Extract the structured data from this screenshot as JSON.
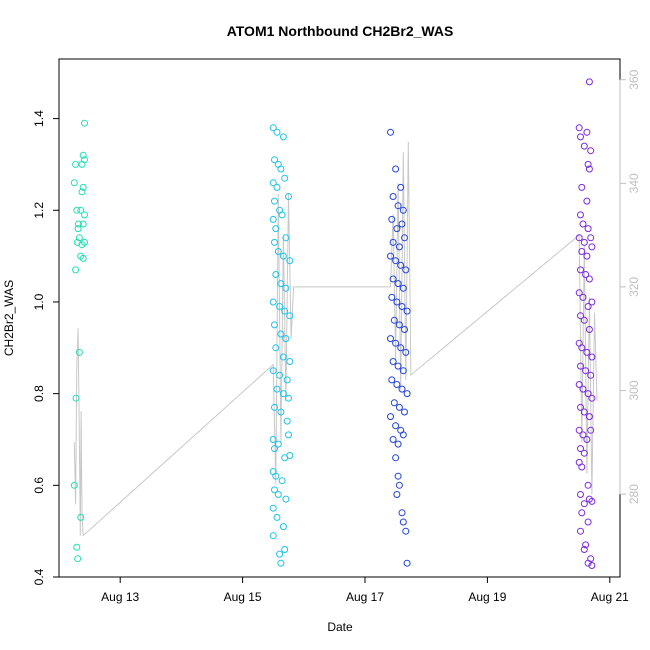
{
  "chart_data": {
    "type": "scatter",
    "title": "ATOM1 Northbound CH2Br2_WAS",
    "xlabel": "Date",
    "ylabel": "CH2Br2_WAS",
    "x_range": [
      "2016-08-12T00:00",
      "2016-08-21T04:00"
    ],
    "ylim": [
      0.4,
      1.53
    ],
    "y2lim": [
      264,
      364
    ],
    "x_ticks": [
      {
        "date": "2016-08-13",
        "label": "Aug 13"
      },
      {
        "date": "2016-08-15",
        "label": "Aug 15"
      },
      {
        "date": "2016-08-17",
        "label": "Aug 17"
      },
      {
        "date": "2016-08-19",
        "label": "Aug 19"
      },
      {
        "date": "2016-08-21",
        "label": "Aug 21"
      }
    ],
    "y_ticks": [
      {
        "value": 0.4,
        "label": "0.4"
      },
      {
        "value": 0.6,
        "label": "0.6"
      },
      {
        "value": 0.8,
        "label": "0.8"
      },
      {
        "value": 1.0,
        "label": "1.0"
      },
      {
        "value": 1.2,
        "label": "1.2"
      },
      {
        "value": 1.4,
        "label": "1.4"
      }
    ],
    "y2_ticks": [
      {
        "value": 280,
        "label": "280"
      },
      {
        "value": 300,
        "label": "300"
      },
      {
        "value": 320,
        "label": "320"
      },
      {
        "value": 340,
        "label": "340"
      },
      {
        "value": 360,
        "label": "360"
      }
    ],
    "colors": {
      "c1": "#1fe0b8",
      "c2": "#1ec3e6",
      "c3": "#2244dd",
      "c4": "#7a2ae0",
      "secondary_line": "#c8c8c8",
      "secondary_axis": "#bfbfbf"
    },
    "grid": false,
    "legend": "none",
    "series": [
      {
        "color": "c1",
        "points": [
          [
            "2016-08-12T06:00",
            1.26
          ],
          [
            "2016-08-12T06:30",
            1.3
          ],
          [
            "2016-08-12T07:00",
            1.2
          ],
          [
            "2016-08-12T07:30",
            1.16
          ],
          [
            "2016-08-12T08:00",
            1.14
          ],
          [
            "2016-08-12T08:30",
            1.1
          ],
          [
            "2016-08-12T06:30",
            1.07
          ],
          [
            "2016-08-12T07:10",
            1.13
          ],
          [
            "2016-08-12T07:40",
            1.17
          ],
          [
            "2016-08-12T06:00",
            0.6
          ],
          [
            "2016-08-12T06:40",
            0.79
          ],
          [
            "2016-08-12T07:00",
            0.465
          ],
          [
            "2016-08-12T07:20",
            0.44
          ],
          [
            "2016-08-12T08:00",
            0.89
          ],
          [
            "2016-08-12T08:30",
            0.53
          ],
          [
            "2016-08-12T09:00",
            1.3
          ],
          [
            "2016-08-12T09:30",
            1.32
          ],
          [
            "2016-08-12T10:00",
            1.39
          ],
          [
            "2016-08-12T10:00",
            1.31
          ],
          [
            "2016-08-12T09:00",
            1.24
          ],
          [
            "2016-08-12T09:30",
            1.25
          ],
          [
            "2016-08-12T10:00",
            1.19
          ],
          [
            "2016-08-12T09:30",
            1.17
          ],
          [
            "2016-08-12T10:00",
            1.13
          ],
          [
            "2016-08-12T09:00",
            1.125
          ],
          [
            "2016-08-12T09:30",
            1.095
          ],
          [
            "2016-08-12T08:30",
            1.2
          ]
        ]
      },
      {
        "color": "c2",
        "points": [
          [
            "2016-08-15T12:00",
            1.38
          ],
          [
            "2016-08-15T13:30",
            1.37
          ],
          [
            "2016-08-15T16:00",
            1.36
          ],
          [
            "2016-08-15T12:30",
            1.31
          ],
          [
            "2016-08-15T14:00",
            1.3
          ],
          [
            "2016-08-15T15:00",
            1.29
          ],
          [
            "2016-08-15T12:00",
            1.26
          ],
          [
            "2016-08-15T13:30",
            1.25
          ],
          [
            "2016-08-15T16:30",
            1.27
          ],
          [
            "2016-08-15T12:30",
            1.22
          ],
          [
            "2016-08-15T14:30",
            1.2
          ],
          [
            "2016-08-15T18:00",
            1.23
          ],
          [
            "2016-08-15T12:00",
            1.18
          ],
          [
            "2016-08-15T13:00",
            1.16
          ],
          [
            "2016-08-15T15:30",
            1.19
          ],
          [
            "2016-08-15T17:00",
            1.14
          ],
          [
            "2016-08-15T12:30",
            1.13
          ],
          [
            "2016-08-15T14:00",
            1.11
          ],
          [
            "2016-08-15T16:00",
            1.1
          ],
          [
            "2016-08-15T18:30",
            1.09
          ],
          [
            "2016-08-15T13:00",
            1.06
          ],
          [
            "2016-08-15T15:00",
            1.04
          ],
          [
            "2016-08-15T17:00",
            1.03
          ],
          [
            "2016-08-15T12:00",
            1.0
          ],
          [
            "2016-08-15T14:30",
            0.99
          ],
          [
            "2016-08-15T16:30",
            0.98
          ],
          [
            "2016-08-15T18:30",
            0.97
          ],
          [
            "2016-08-15T12:30",
            0.95
          ],
          [
            "2016-08-15T15:00",
            0.93
          ],
          [
            "2016-08-15T17:00",
            0.92
          ],
          [
            "2016-08-15T13:00",
            0.9
          ],
          [
            "2016-08-15T16:00",
            0.88
          ],
          [
            "2016-08-15T18:30",
            0.87
          ],
          [
            "2016-08-15T12:00",
            0.85
          ],
          [
            "2016-08-15T14:30",
            0.84
          ],
          [
            "2016-08-15T17:30",
            0.83
          ],
          [
            "2016-08-15T13:30",
            0.81
          ],
          [
            "2016-08-15T16:00",
            0.8
          ],
          [
            "2016-08-15T18:00",
            0.79
          ],
          [
            "2016-08-15T12:30",
            0.77
          ],
          [
            "2016-08-15T15:00",
            0.76
          ],
          [
            "2016-08-15T17:30",
            0.74
          ],
          [
            "2016-08-15T12:00",
            0.7
          ],
          [
            "2016-08-15T14:00",
            0.69
          ],
          [
            "2016-08-15T18:00",
            0.71
          ],
          [
            "2016-08-15T12:30",
            0.68
          ],
          [
            "2016-08-15T16:30",
            0.66
          ],
          [
            "2016-08-15T18:30",
            0.665
          ],
          [
            "2016-08-15T12:00",
            0.63
          ],
          [
            "2016-08-15T13:00",
            0.62
          ],
          [
            "2016-08-15T15:30",
            0.61
          ],
          [
            "2016-08-15T12:30",
            0.59
          ],
          [
            "2016-08-15T14:00",
            0.58
          ],
          [
            "2016-08-15T17:00",
            0.57
          ],
          [
            "2016-08-15T12:00",
            0.55
          ],
          [
            "2016-08-15T13:30",
            0.53
          ],
          [
            "2016-08-15T16:00",
            0.51
          ],
          [
            "2016-08-15T12:00",
            0.49
          ],
          [
            "2016-08-15T14:30",
            0.45
          ],
          [
            "2016-08-15T16:30",
            0.46
          ],
          [
            "2016-08-15T15:00",
            0.43
          ]
        ]
      },
      {
        "color": "c3",
        "points": [
          [
            "2016-08-17T10:00",
            1.37
          ],
          [
            "2016-08-17T12:00",
            1.29
          ],
          [
            "2016-08-17T14:00",
            1.25
          ],
          [
            "2016-08-17T11:00",
            1.23
          ],
          [
            "2016-08-17T13:00",
            1.21
          ],
          [
            "2016-08-17T15:00",
            1.2
          ],
          [
            "2016-08-17T10:30",
            1.18
          ],
          [
            "2016-08-17T12:30",
            1.16
          ],
          [
            "2016-08-17T14:30",
            1.17
          ],
          [
            "2016-08-17T11:00",
            1.13
          ],
          [
            "2016-08-17T13:30",
            1.12
          ],
          [
            "2016-08-17T15:30",
            1.14
          ],
          [
            "2016-08-17T10:00",
            1.1
          ],
          [
            "2016-08-17T12:00",
            1.09
          ],
          [
            "2016-08-17T14:00",
            1.08
          ],
          [
            "2016-08-17T16:00",
            1.07
          ],
          [
            "2016-08-17T11:00",
            1.05
          ],
          [
            "2016-08-17T13:00",
            1.04
          ],
          [
            "2016-08-17T15:00",
            1.03
          ],
          [
            "2016-08-17T10:30",
            1.01
          ],
          [
            "2016-08-17T12:30",
            1.0
          ],
          [
            "2016-08-17T14:30",
            0.99
          ],
          [
            "2016-08-17T16:30",
            0.98
          ],
          [
            "2016-08-17T11:30",
            0.96
          ],
          [
            "2016-08-17T13:30",
            0.95
          ],
          [
            "2016-08-17T15:30",
            0.94
          ],
          [
            "2016-08-17T10:00",
            0.92
          ],
          [
            "2016-08-17T12:00",
            0.91
          ],
          [
            "2016-08-17T14:00",
            0.9
          ],
          [
            "2016-08-17T16:00",
            0.89
          ],
          [
            "2016-08-17T11:00",
            0.87
          ],
          [
            "2016-08-17T13:00",
            0.86
          ],
          [
            "2016-08-17T15:00",
            0.85
          ],
          [
            "2016-08-17T10:30",
            0.83
          ],
          [
            "2016-08-17T12:30",
            0.82
          ],
          [
            "2016-08-17T14:30",
            0.81
          ],
          [
            "2016-08-17T16:30",
            0.8
          ],
          [
            "2016-08-17T11:30",
            0.78
          ],
          [
            "2016-08-17T13:30",
            0.77
          ],
          [
            "2016-08-17T15:30",
            0.76
          ],
          [
            "2016-08-17T10:00",
            0.75
          ],
          [
            "2016-08-17T12:00",
            0.73
          ],
          [
            "2016-08-17T14:00",
            0.72
          ],
          [
            "2016-08-17T11:00",
            0.7
          ],
          [
            "2016-08-17T13:00",
            0.69
          ],
          [
            "2016-08-17T15:00",
            0.71
          ],
          [
            "2016-08-17T12:00",
            0.66
          ],
          [
            "2016-08-17T13:00",
            0.62
          ],
          [
            "2016-08-17T13:30",
            0.6
          ],
          [
            "2016-08-17T12:30",
            0.58
          ],
          [
            "2016-08-17T14:30",
            0.54
          ],
          [
            "2016-08-17T15:00",
            0.52
          ],
          [
            "2016-08-17T16:00",
            0.5
          ],
          [
            "2016-08-17T16:30",
            0.43
          ]
        ]
      },
      {
        "color": "c4",
        "points": [
          [
            "2016-08-20T12:00",
            1.38
          ],
          [
            "2016-08-20T12:30",
            1.36
          ],
          [
            "2016-08-20T16:00",
            1.48
          ],
          [
            "2016-08-20T14:00",
            1.34
          ],
          [
            "2016-08-20T15:00",
            1.37
          ],
          [
            "2016-08-20T16:30",
            1.33
          ],
          [
            "2016-08-20T15:30",
            1.3
          ],
          [
            "2016-08-20T16:00",
            1.29
          ],
          [
            "2016-08-20T13:00",
            1.25
          ],
          [
            "2016-08-20T15:00",
            1.22
          ],
          [
            "2016-08-20T12:30",
            1.19
          ],
          [
            "2016-08-20T13:30",
            1.17
          ],
          [
            "2016-08-20T15:30",
            1.16
          ],
          [
            "2016-08-20T12:00",
            1.14
          ],
          [
            "2016-08-20T14:00",
            1.13
          ],
          [
            "2016-08-20T16:30",
            1.14
          ],
          [
            "2016-08-20T13:00",
            1.11
          ],
          [
            "2016-08-20T15:00",
            1.1
          ],
          [
            "2016-08-20T17:00",
            1.12
          ],
          [
            "2016-08-20T12:30",
            1.07
          ],
          [
            "2016-08-20T14:30",
            1.06
          ],
          [
            "2016-08-20T16:00",
            1.05
          ],
          [
            "2016-08-20T12:00",
            1.02
          ],
          [
            "2016-08-20T13:30",
            1.01
          ],
          [
            "2016-08-20T15:30",
            0.99
          ],
          [
            "2016-08-20T17:00",
            1.0
          ],
          [
            "2016-08-20T12:30",
            0.97
          ],
          [
            "2016-08-20T14:00",
            0.96
          ],
          [
            "2016-08-20T16:00",
            0.94
          ],
          [
            "2016-08-20T12:00",
            0.91
          ],
          [
            "2016-08-20T13:00",
            0.9
          ],
          [
            "2016-08-20T15:00",
            0.89
          ],
          [
            "2016-08-20T17:00",
            0.88
          ],
          [
            "2016-08-20T12:30",
            0.86
          ],
          [
            "2016-08-20T14:30",
            0.85
          ],
          [
            "2016-08-20T16:30",
            0.84
          ],
          [
            "2016-08-20T12:00",
            0.82
          ],
          [
            "2016-08-20T13:30",
            0.81
          ],
          [
            "2016-08-20T15:30",
            0.8
          ],
          [
            "2016-08-20T17:00",
            0.79
          ],
          [
            "2016-08-20T12:30",
            0.77
          ],
          [
            "2016-08-20T14:00",
            0.76
          ],
          [
            "2016-08-20T16:00",
            0.75
          ],
          [
            "2016-08-20T12:00",
            0.72
          ],
          [
            "2016-08-20T13:30",
            0.71
          ],
          [
            "2016-08-20T15:00",
            0.7
          ],
          [
            "2016-08-20T16:30",
            0.72
          ],
          [
            "2016-08-20T12:30",
            0.68
          ],
          [
            "2016-08-20T14:00",
            0.67
          ],
          [
            "2016-08-20T12:00",
            0.65
          ],
          [
            "2016-08-20T13:00",
            0.64
          ],
          [
            "2016-08-20T15:30",
            0.6
          ],
          [
            "2016-08-20T12:30",
            0.58
          ],
          [
            "2016-08-20T14:00",
            0.56
          ],
          [
            "2016-08-20T16:00",
            0.57
          ],
          [
            "2016-08-20T17:00",
            0.565
          ],
          [
            "2016-08-20T13:00",
            0.54
          ],
          [
            "2016-08-20T15:30",
            0.52
          ],
          [
            "2016-08-20T12:30",
            0.5
          ],
          [
            "2016-08-20T14:30",
            0.47
          ],
          [
            "2016-08-20T16:30",
            0.44
          ],
          [
            "2016-08-20T15:30",
            0.43
          ],
          [
            "2016-08-20T17:00",
            0.425
          ],
          [
            "2016-08-20T14:00",
            0.46
          ]
        ]
      }
    ],
    "secondary_series": {
      "axis": "right",
      "points": [
        [
          "2016-08-12T06:00",
          290
        ],
        [
          "2016-08-12T06:30",
          278
        ],
        [
          "2016-08-12T07:00",
          305
        ],
        [
          "2016-08-12T07:30",
          312
        ],
        [
          "2016-08-12T08:00",
          290
        ],
        [
          "2016-08-12T08:20",
          272
        ],
        [
          "2016-08-12T08:40",
          296
        ],
        [
          "2016-08-12T09:00",
          276
        ],
        [
          "2016-08-12T09:30",
          272
        ],
        [
          "2016-08-15T12:00",
          305
        ],
        [
          "2016-08-15T13:00",
          282
        ],
        [
          "2016-08-15T14:00",
          338
        ],
        [
          "2016-08-15T15:00",
          290
        ],
        [
          "2016-08-15T16:00",
          330
        ],
        [
          "2016-08-15T17:00",
          298
        ],
        [
          "2016-08-15T18:00",
          338
        ],
        [
          "2016-08-15T19:00",
          310
        ],
        [
          "2016-08-15T20:00",
          320
        ],
        [
          "2016-08-17T10:00",
          320
        ],
        [
          "2016-08-17T11:00",
          334
        ],
        [
          "2016-08-17T12:00",
          306
        ],
        [
          "2016-08-17T13:00",
          340
        ],
        [
          "2016-08-17T14:00",
          300
        ],
        [
          "2016-08-17T15:00",
          346
        ],
        [
          "2016-08-17T16:00",
          302
        ],
        [
          "2016-08-17T17:00",
          348
        ],
        [
          "2016-08-17T18:00",
          303
        ],
        [
          "2016-08-20T12:00",
          330
        ],
        [
          "2016-08-20T13:00",
          290
        ],
        [
          "2016-08-20T14:00",
          328
        ],
        [
          "2016-08-20T15:00",
          284
        ],
        [
          "2016-08-20T16:00",
          318
        ],
        [
          "2016-08-20T17:00",
          280
        ],
        [
          "2016-08-20T18:00",
          315
        ],
        [
          "2016-08-20T19:00",
          298
        ]
      ]
    }
  }
}
